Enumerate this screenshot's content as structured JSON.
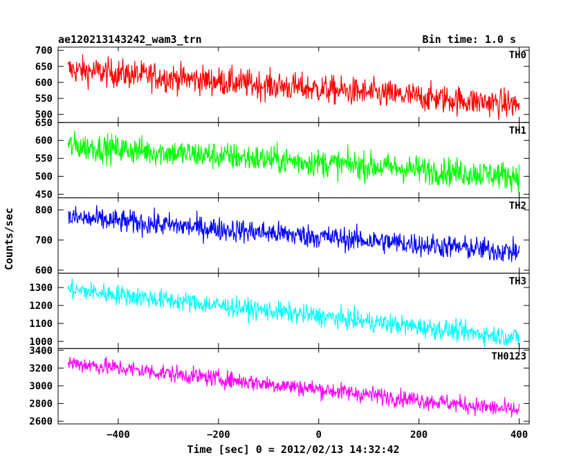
{
  "header": {
    "file_name": "ae120213143242_wam3_trn",
    "bin_time": "Bin time: 1.0 s"
  },
  "axes": {
    "ylabel": "Counts/sec",
    "xlabel": "Time [sec] 0 = 2012/02/13 14:32:42"
  },
  "chart_data": [
    {
      "type": "line",
      "name": "TH0",
      "color": "#ff0000",
      "xlim": [
        -520,
        420
      ],
      "ylim": [
        475,
        710
      ],
      "yticks": [
        500,
        550,
        600,
        650,
        700
      ],
      "x_range": [
        -500,
        400
      ],
      "trend": {
        "start": 640,
        "end": 530
      },
      "noise_amplitude": 32
    },
    {
      "type": "line",
      "name": "TH1",
      "color": "#00ff00",
      "xlim": [
        -520,
        420
      ],
      "ylim": [
        440,
        650
      ],
      "yticks": [
        450,
        500,
        550,
        600,
        650
      ],
      "x_range": [
        -500,
        400
      ],
      "trend": {
        "start": 585,
        "end": 500
      },
      "noise_amplitude": 28
    },
    {
      "type": "line",
      "name": "TH2",
      "color": "#0000ff",
      "xlim": [
        -520,
        420
      ],
      "ylim": [
        590,
        840
      ],
      "yticks": [
        600,
        700,
        800
      ],
      "x_range": [
        -500,
        400
      ],
      "trend": {
        "start": 775,
        "end": 660
      },
      "noise_amplitude": 28
    },
    {
      "type": "line",
      "name": "TH3",
      "color": "#00ffff",
      "xlim": [
        -520,
        420
      ],
      "ylim": [
        960,
        1380
      ],
      "yticks": [
        1000,
        1100,
        1200,
        1300
      ],
      "x_range": [
        -500,
        400
      ],
      "trend": {
        "start": 1290,
        "end": 1020
      },
      "noise_amplitude": 40
    },
    {
      "type": "line",
      "name": "TH0123",
      "color": "#ff00ff",
      "xlim": [
        -520,
        420
      ],
      "ylim": [
        2570,
        3420
      ],
      "yticks": [
        2600,
        2800,
        3000,
        3200,
        3400
      ],
      "x_range": [
        -500,
        400
      ],
      "trend": {
        "start": 3260,
        "end": 2720
      },
      "noise_amplitude": 70
    }
  ],
  "xaxis": {
    "ticks": [
      -400,
      -200,
      0,
      200,
      400
    ],
    "tick_labels": [
      "−400",
      "−200",
      "0",
      "200",
      "400"
    ]
  }
}
